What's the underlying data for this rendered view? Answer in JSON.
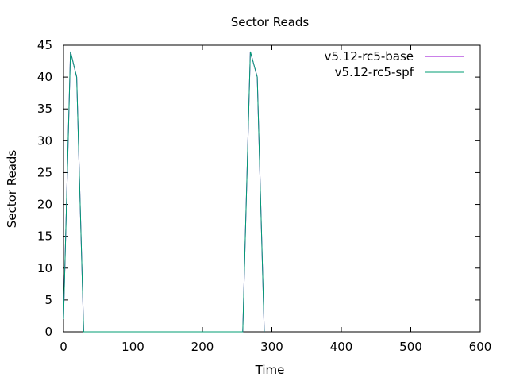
{
  "chart_data": {
    "type": "line",
    "title": "Sector Reads",
    "xlabel": "Time",
    "ylabel": "Sector Reads",
    "xlim": [
      0,
      600
    ],
    "ylim": [
      0,
      45
    ],
    "xticks": [
      "0",
      "100",
      "200",
      "300",
      "400",
      "500",
      "600"
    ],
    "yticks": [
      "0",
      "5",
      "10",
      "15",
      "20",
      "25",
      "30",
      "35",
      "40",
      "45"
    ],
    "grid": false,
    "legend_position": "top-right",
    "series": [
      {
        "name": "v5.12-rc5-base",
        "color": "#9400d3",
        "x": [
          0,
          10,
          19,
          29,
          258,
          269,
          279,
          289
        ],
        "y": [
          2,
          44,
          40,
          0,
          0,
          44,
          40,
          0
        ]
      },
      {
        "name": "v5.12-rc5-spf",
        "color": "#009e73",
        "x": [
          0,
          10,
          19,
          29,
          258,
          269,
          279,
          289
        ],
        "y": [
          2,
          44,
          40,
          0,
          0,
          44,
          40,
          0
        ]
      }
    ]
  }
}
